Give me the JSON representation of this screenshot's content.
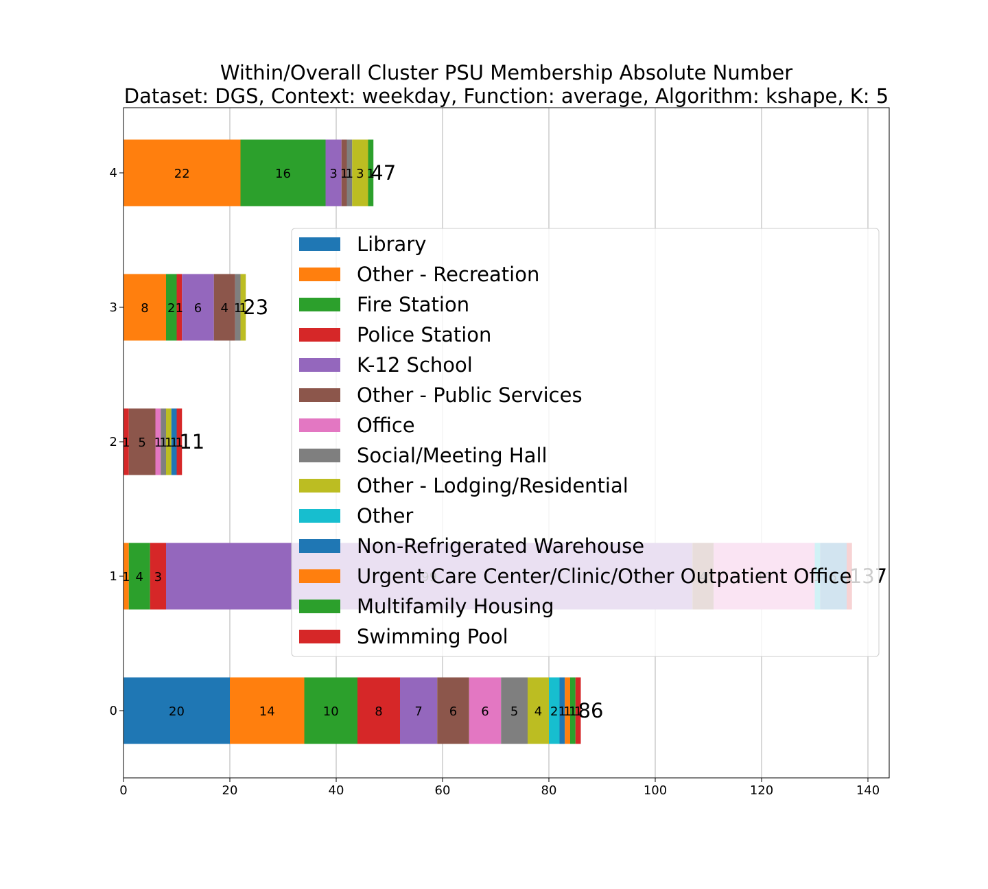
{
  "chart_data": {
    "type": "bar",
    "orientation": "horizontal",
    "stacked": true,
    "title": "Within/Overall Cluster PSU Membership Absolute Number",
    "subtitle": "Dataset: DGS, Context: weekday, Function: average, Algorithm: kshape, K: 5",
    "xlabel": "",
    "ylabel": "",
    "xlim": [
      0,
      144
    ],
    "xticks": [
      0,
      20,
      40,
      60,
      80,
      100,
      120,
      140
    ],
    "categories": [
      "0",
      "1",
      "2",
      "3",
      "4"
    ],
    "totals": [
      86,
      137,
      11,
      23,
      47
    ],
    "grid": "x",
    "legend_position": "center-right",
    "series": [
      {
        "name": "Library",
        "color": "#1f77b4",
        "values": [
          20,
          0,
          0,
          0,
          0
        ]
      },
      {
        "name": "Other - Recreation",
        "color": "#ff7f0e",
        "values": [
          14,
          1,
          0,
          8,
          22
        ]
      },
      {
        "name": "Fire Station",
        "color": "#2ca02c",
        "values": [
          10,
          4,
          0,
          2,
          16
        ]
      },
      {
        "name": "Police Station",
        "color": "#d62728",
        "values": [
          8,
          3,
          1,
          1,
          0
        ]
      },
      {
        "name": "K-12 School",
        "color": "#9467bd",
        "values": [
          7,
          99,
          0,
          6,
          3
        ]
      },
      {
        "name": "Other - Public Services",
        "color": "#8c564b",
        "values": [
          6,
          4,
          5,
          4,
          1
        ]
      },
      {
        "name": "Office",
        "color": "#e377c2",
        "values": [
          6,
          19,
          1,
          0,
          0
        ]
      },
      {
        "name": "Social/Meeting Hall",
        "color": "#7f7f7f",
        "values": [
          5,
          0,
          1,
          1,
          1
        ]
      },
      {
        "name": "Other - Lodging/Residential",
        "color": "#bcbd22",
        "values": [
          4,
          0,
          1,
          1,
          3
        ]
      },
      {
        "name": "Other",
        "color": "#17becf",
        "values": [
          2,
          1,
          0,
          0,
          0
        ]
      },
      {
        "name": "Non-Refrigerated Warehouse",
        "color": "#1f77b4",
        "values": [
          1,
          5,
          1,
          0,
          0
        ]
      },
      {
        "name": "Urgent Care Center/Clinic/Other Outpatient Office",
        "color": "#ff7f0e",
        "values": [
          1,
          0,
          0,
          0,
          0
        ]
      },
      {
        "name": "Multifamily Housing",
        "color": "#2ca02c",
        "values": [
          1,
          0,
          0,
          0,
          1
        ]
      },
      {
        "name": "Swimming Pool",
        "color": "#d62728",
        "values": [
          1,
          1,
          1,
          0,
          0
        ]
      }
    ]
  }
}
